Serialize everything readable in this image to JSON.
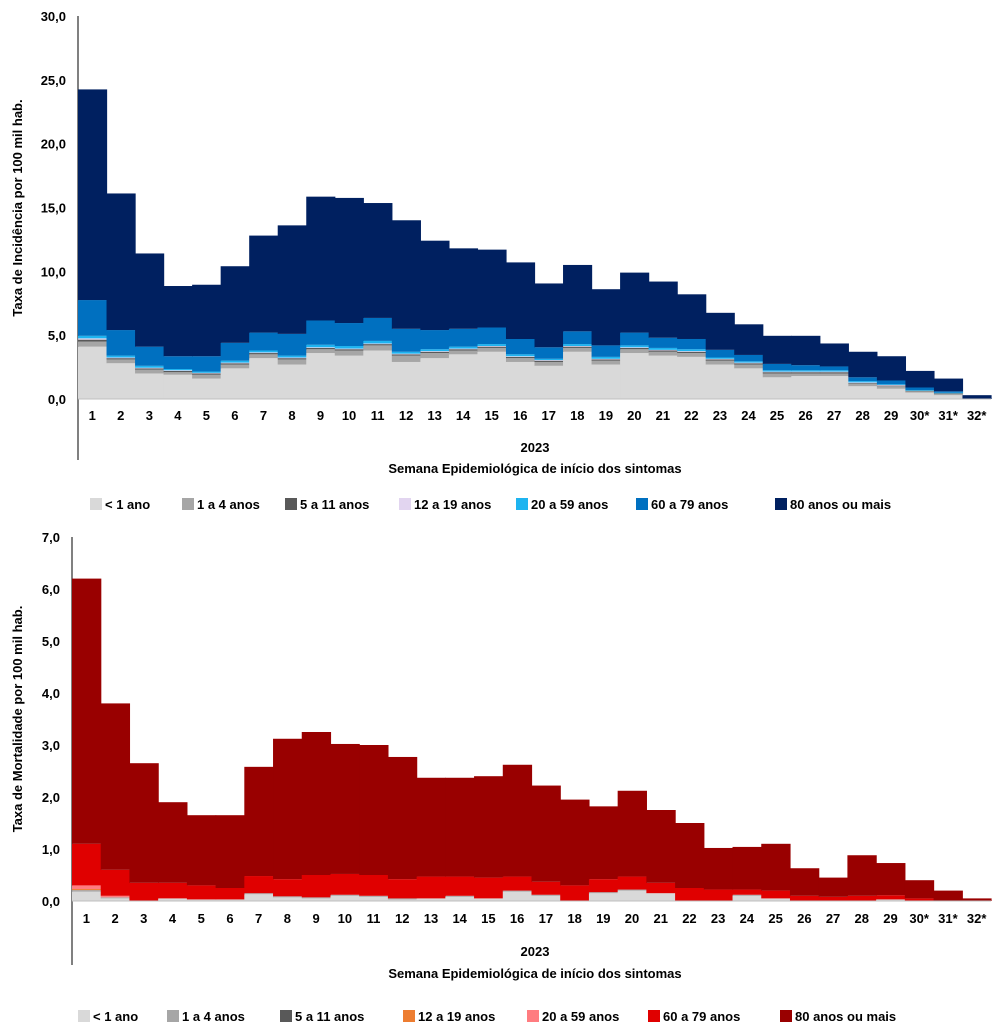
{
  "chart_data": [
    {
      "type": "bar",
      "stacked": true,
      "ylabel": "Taxa de Incidência por 100 mil hab.",
      "xlabel_year": "2023",
      "xlabel": "Semana Epidemiológica de início dos sintomas",
      "ylim": [
        0,
        30
      ],
      "yticks": [
        "0,0",
        "5,0",
        "10,0",
        "15,0",
        "20,0",
        "25,0",
        "30,0"
      ],
      "ytick_values": [
        0,
        5,
        10,
        15,
        20,
        25,
        30
      ],
      "categories": [
        "1",
        "2",
        "3",
        "4",
        "5",
        "6",
        "7",
        "8",
        "9",
        "10",
        "11",
        "12",
        "13",
        "14",
        "15",
        "16",
        "17",
        "18",
        "19",
        "20",
        "21",
        "22",
        "23",
        "24",
        "25",
        "26",
        "27",
        "28",
        "29",
        "30*",
        "31*",
        "32*"
      ],
      "legend_position": "bottom",
      "series": [
        {
          "name": "< 1 ano",
          "color": "#d9d9d9",
          "values": [
            4.1,
            2.8,
            2.0,
            1.9,
            1.6,
            2.4,
            3.2,
            2.7,
            3.6,
            3.4,
            3.8,
            2.9,
            3.2,
            3.5,
            3.7,
            2.9,
            2.6,
            3.7,
            2.7,
            3.6,
            3.4,
            3.3,
            2.7,
            2.4,
            1.7,
            1.8,
            1.8,
            1.0,
            0.8,
            0.5,
            0.3,
            0.0
          ]
        },
        {
          "name": "1 a 4 anos",
          "color": "#a6a6a6",
          "values": [
            0.4,
            0.3,
            0.3,
            0.2,
            0.3,
            0.3,
            0.3,
            0.4,
            0.3,
            0.4,
            0.4,
            0.5,
            0.4,
            0.3,
            0.3,
            0.3,
            0.3,
            0.3,
            0.3,
            0.3,
            0.3,
            0.3,
            0.3,
            0.3,
            0.3,
            0.2,
            0.2,
            0.2,
            0.2,
            0.1,
            0.1,
            0.0
          ]
        },
        {
          "name": "5 a 11 anos",
          "color": "#595959",
          "values": [
            0.15,
            0.1,
            0.1,
            0.1,
            0.1,
            0.1,
            0.1,
            0.1,
            0.1,
            0.1,
            0.1,
            0.1,
            0.1,
            0.1,
            0.1,
            0.1,
            0.1,
            0.1,
            0.1,
            0.1,
            0.1,
            0.1,
            0.1,
            0.1,
            0.1,
            0.1,
            0.1,
            0.05,
            0.05,
            0.05,
            0.05,
            0.0
          ]
        },
        {
          "name": "12 a 19 anos",
          "color": "#e2d5f0",
          "values": [
            0.1,
            0.05,
            0.05,
            0.05,
            0.05,
            0.05,
            0.05,
            0.05,
            0.05,
            0.05,
            0.05,
            0.05,
            0.05,
            0.05,
            0.05,
            0.05,
            0.05,
            0.05,
            0.05,
            0.05,
            0.05,
            0.05,
            0.05,
            0.05,
            0.05,
            0.05,
            0.05,
            0.05,
            0.05,
            0.0,
            0.0,
            0.0
          ]
        },
        {
          "name": "20 a 59 anos",
          "color": "#1eb4f0",
          "values": [
            0.2,
            0.15,
            0.15,
            0.1,
            0.1,
            0.15,
            0.15,
            0.15,
            0.2,
            0.2,
            0.2,
            0.15,
            0.15,
            0.15,
            0.15,
            0.15,
            0.1,
            0.15,
            0.15,
            0.15,
            0.15,
            0.15,
            0.1,
            0.1,
            0.1,
            0.1,
            0.1,
            0.1,
            0.05,
            0.05,
            0.05,
            0.0
          ]
        },
        {
          "name": "60 a 79 anos",
          "color": "#0070c0",
          "values": [
            2.8,
            2.0,
            1.5,
            1.0,
            1.2,
            1.4,
            1.4,
            1.7,
            1.9,
            1.8,
            1.8,
            1.8,
            1.5,
            1.4,
            1.3,
            1.2,
            0.9,
            1.0,
            0.9,
            1.0,
            0.8,
            0.8,
            0.6,
            0.5,
            0.5,
            0.4,
            0.3,
            0.3,
            0.3,
            0.2,
            0.1,
            0.0
          ]
        },
        {
          "name": "80 anos ou mais",
          "color": "#002060",
          "values": [
            16.5,
            10.7,
            7.3,
            5.5,
            5.6,
            6.0,
            7.6,
            8.5,
            9.7,
            9.8,
            9.0,
            8.5,
            7.0,
            6.3,
            6.1,
            6.0,
            5.0,
            5.2,
            4.4,
            4.7,
            4.4,
            3.5,
            2.9,
            2.4,
            2.2,
            2.3,
            1.8,
            2.0,
            1.9,
            1.3,
            1.0,
            0.3
          ]
        }
      ]
    },
    {
      "type": "bar",
      "stacked": true,
      "ylabel": "Taxa de Mortalidade por 100 mil hab.",
      "xlabel_year": "2023",
      "xlabel": "Semana Epidemiológica de início dos sintomas",
      "ylim": [
        0,
        7
      ],
      "yticks": [
        "0,0",
        "1,0",
        "2,0",
        "3,0",
        "4,0",
        "5,0",
        "6,0",
        "7,0"
      ],
      "ytick_values": [
        0,
        1,
        2,
        3,
        4,
        5,
        6,
        7
      ],
      "categories": [
        "1",
        "2",
        "3",
        "4",
        "5",
        "6",
        "7",
        "8",
        "9",
        "10",
        "11",
        "12",
        "13",
        "14",
        "15",
        "16",
        "17",
        "18",
        "19",
        "20",
        "21",
        "22",
        "23",
        "24",
        "25",
        "26",
        "27",
        "28",
        "29",
        "30*",
        "31*",
        "32*"
      ],
      "legend_position": "bottom",
      "series": [
        {
          "name": "< 1 ano",
          "color": "#d9d9d9",
          "values": [
            0.18,
            0.05,
            0.0,
            0.05,
            0.03,
            0.03,
            0.13,
            0.07,
            0.05,
            0.1,
            0.08,
            0.03,
            0.05,
            0.08,
            0.05,
            0.18,
            0.1,
            0.0,
            0.15,
            0.2,
            0.15,
            0.0,
            0.0,
            0.1,
            0.05,
            0.0,
            0.0,
            0.0,
            0.03,
            0.0,
            0.0,
            0.0
          ]
        },
        {
          "name": "1 a 4 anos",
          "color": "#a6a6a6",
          "values": [
            0.03,
            0.02,
            0.0,
            0.0,
            0.0,
            0.0,
            0.02,
            0.02,
            0.02,
            0.02,
            0.02,
            0.02,
            0.0,
            0.02,
            0.0,
            0.02,
            0.02,
            0.0,
            0.02,
            0.02,
            0.0,
            0.0,
            0.0,
            0.02,
            0.0,
            0.0,
            0.0,
            0.0,
            0.0,
            0.0,
            0.0,
            0.0
          ]
        },
        {
          "name": "5 a 11 anos",
          "color": "#595959",
          "values": [
            0.0,
            0.0,
            0.0,
            0.0,
            0.0,
            0.0,
            0.0,
            0.0,
            0.0,
            0.0,
            0.0,
            0.0,
            0.0,
            0.0,
            0.0,
            0.0,
            0.0,
            0.0,
            0.0,
            0.0,
            0.0,
            0.0,
            0.0,
            0.0,
            0.0,
            0.0,
            0.0,
            0.0,
            0.0,
            0.0,
            0.0,
            0.0
          ]
        },
        {
          "name": "12 a 19 anos",
          "color": "#ed7d31",
          "values": [
            0.02,
            0.0,
            0.0,
            0.0,
            0.0,
            0.0,
            0.0,
            0.0,
            0.0,
            0.0,
            0.0,
            0.0,
            0.0,
            0.0,
            0.0,
            0.0,
            0.0,
            0.0,
            0.0,
            0.0,
            0.0,
            0.0,
            0.0,
            0.0,
            0.0,
            0.0,
            0.0,
            0.0,
            0.0,
            0.0,
            0.0,
            0.0
          ]
        },
        {
          "name": "20 a 59 anos",
          "color": "#ff7c80",
          "values": [
            0.07,
            0.03,
            0.0,
            0.0,
            0.0,
            0.0,
            0.0,
            0.0,
            0.0,
            0.0,
            0.0,
            0.0,
            0.0,
            0.0,
            0.0,
            0.0,
            0.0,
            0.0,
            0.0,
            0.0,
            0.0,
            0.0,
            0.0,
            0.0,
            0.0,
            0.0,
            0.0,
            0.0,
            0.0,
            0.0,
            0.0,
            0.0
          ]
        },
        {
          "name": "60 a 79 anos",
          "color": "#e00000",
          "values": [
            0.8,
            0.5,
            0.35,
            0.3,
            0.27,
            0.22,
            0.33,
            0.33,
            0.43,
            0.4,
            0.4,
            0.37,
            0.42,
            0.37,
            0.4,
            0.27,
            0.25,
            0.3,
            0.25,
            0.25,
            0.2,
            0.25,
            0.22,
            0.1,
            0.15,
            0.1,
            0.08,
            0.1,
            0.08,
            0.05,
            0.0,
            0.0
          ]
        },
        {
          "name": "80 anos ou mais",
          "color": "#990000",
          "values": [
            5.1,
            3.2,
            2.3,
            1.55,
            1.35,
            1.4,
            2.1,
            2.7,
            2.75,
            2.5,
            2.5,
            2.35,
            1.9,
            1.9,
            1.95,
            2.15,
            1.85,
            1.65,
            1.4,
            1.65,
            1.4,
            1.25,
            0.8,
            0.82,
            0.9,
            0.53,
            0.37,
            0.78,
            0.62,
            0.35,
            0.2,
            0.05
          ]
        }
      ]
    }
  ]
}
